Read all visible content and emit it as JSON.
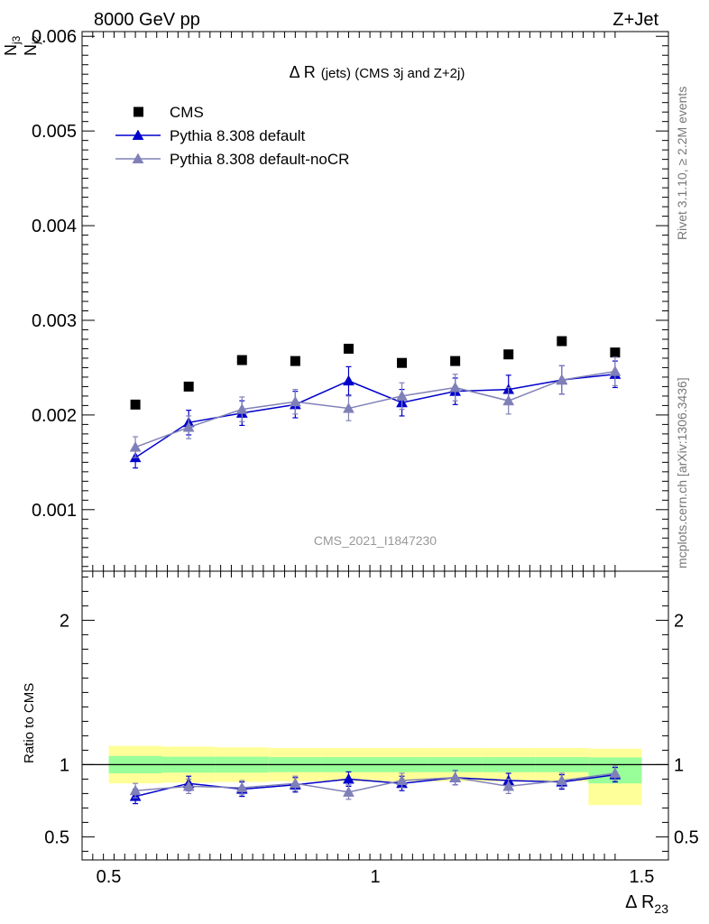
{
  "header": {
    "left": "8000 GeV pp",
    "right": "Z+Jet"
  },
  "title_main": "Δ R",
  "title_paren": "(jets) (CMS 3j and Z+2j)",
  "ylabel_num": "N",
  "ylabel_num_sub": "j3",
  "ylabel_den": "N",
  "ylabel_den_sub": "j2",
  "xlabel_main": "Δ R",
  "xlabel_sub": "23",
  "ratio_ylabel": "Ratio to CMS",
  "watermark": "CMS_2021_I1847230",
  "side_top": "Rivet 3.1.10, ≥ 2.2M events",
  "side_bottom": "mcplots.cern.ch [arXiv:1306.3436]",
  "colors": {
    "cms": "#000000",
    "default": "#0000cc",
    "nocr": "#8080b8",
    "band_inner": "#99ff99",
    "band_outer": "#ffff99"
  },
  "chart_data": {
    "type": "scatter",
    "x": [
      0.55,
      0.65,
      0.75,
      0.85,
      0.95,
      1.05,
      1.15,
      1.25,
      1.35,
      1.45
    ],
    "xlim": [
      0.45,
      1.55
    ],
    "main_ylim": [
      0.00035,
      0.00605
    ],
    "ratio_ylim": [
      0.34,
      2.34
    ],
    "main_ticks": [
      {
        "v": 0.001,
        "label": "0.001"
      },
      {
        "v": 0.002,
        "label": "0.002"
      },
      {
        "v": 0.003,
        "label": "0.003"
      },
      {
        "v": 0.004,
        "label": "0.004"
      },
      {
        "v": 0.005,
        "label": "0.005"
      },
      {
        "v": 0.006,
        "label": "0.006"
      }
    ],
    "ratio_ticks": [
      {
        "v": 0.5,
        "label": "0.5"
      },
      {
        "v": 1,
        "label": "1"
      },
      {
        "v": 2,
        "label": "2"
      }
    ],
    "x_ticks": [
      {
        "v": 0.5,
        "label": "0.5"
      },
      {
        "v": 1,
        "label": "1"
      },
      {
        "v": 1.5,
        "label": "1.5"
      }
    ],
    "series": [
      {
        "name": "CMS",
        "key": "cms",
        "values": [
          0.00211,
          0.0023,
          0.00258,
          0.00257,
          0.0027,
          0.00255,
          0.00257,
          0.00264,
          0.00278,
          0.00266
        ],
        "errors": [
          0,
          0,
          0,
          0,
          0,
          0,
          0,
          0,
          0,
          0
        ],
        "ratio": [
          1,
          1,
          1,
          1,
          1,
          1,
          1,
          1,
          1,
          1
        ],
        "ratio_err": [
          0,
          0,
          0,
          0,
          0,
          0,
          0,
          0,
          0,
          0
        ]
      },
      {
        "name": "Pythia 8.308 default",
        "key": "default",
        "values": [
          0.00155,
          0.00192,
          0.00202,
          0.00211,
          0.00236,
          0.00213,
          0.00225,
          0.00227,
          0.00237,
          0.00243
        ],
        "errors": [
          0.00011,
          0.00013,
          0.00013,
          0.00014,
          0.00015,
          0.00014,
          0.00014,
          0.00015,
          0.00015,
          0.00014
        ],
        "ratio": [
          0.78,
          0.87,
          0.83,
          0.86,
          0.9,
          0.87,
          0.91,
          0.89,
          0.88,
          0.93
        ],
        "ratio_err": [
          0.05,
          0.05,
          0.05,
          0.05,
          0.05,
          0.05,
          0.05,
          0.05,
          0.05,
          0.05
        ]
      },
      {
        "name": "Pythia 8.308 default-noCR",
        "key": "nocr",
        "values": [
          0.00166,
          0.00187,
          0.00206,
          0.00214,
          0.00207,
          0.0022,
          0.00229,
          0.00215,
          0.00237,
          0.00246
        ],
        "errors": [
          0.00011,
          0.00012,
          0.00013,
          0.00013,
          0.00013,
          0.00014,
          0.00014,
          0.00014,
          0.00015,
          0.00015
        ],
        "ratio": [
          0.82,
          0.85,
          0.84,
          0.87,
          0.81,
          0.89,
          0.91,
          0.85,
          0.89,
          0.94
        ],
        "ratio_err": [
          0.05,
          0.05,
          0.05,
          0.05,
          0.05,
          0.05,
          0.05,
          0.05,
          0.05,
          0.05
        ]
      }
    ],
    "ratio_band": {
      "edges": [
        0.5,
        0.6,
        0.7,
        0.8,
        0.9,
        1.0,
        1.1,
        1.2,
        1.3,
        1.4,
        1.5
      ],
      "inner_lo": [
        0.94,
        0.945,
        0.945,
        0.948,
        0.948,
        0.948,
        0.948,
        0.948,
        0.948,
        0.87
      ],
      "inner_hi": [
        1.06,
        1.055,
        1.055,
        1.052,
        1.052,
        1.052,
        1.052,
        1.052,
        1.052,
        1.05
      ],
      "outer_lo": [
        0.87,
        0.875,
        0.88,
        0.885,
        0.885,
        0.885,
        0.885,
        0.885,
        0.885,
        0.72
      ],
      "outer_hi": [
        1.13,
        1.125,
        1.12,
        1.115,
        1.115,
        1.115,
        1.115,
        1.115,
        1.115,
        1.11
      ]
    }
  }
}
